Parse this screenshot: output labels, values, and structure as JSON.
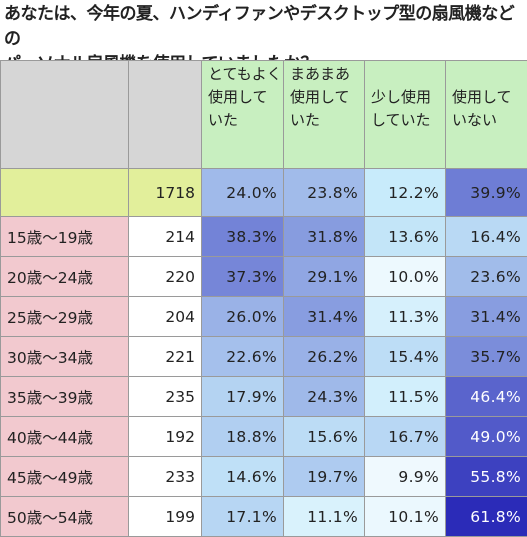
{
  "chart_data": {
    "type": "table",
    "title": "あなたは、今年の夏、ハンディファンやデスクトップ型の扇風機などのパーソナル扇風機を使用していましたか？",
    "title_lines": [
      "あなたは、今年の夏、ハンディファンやデスクトップ型の扇風機などの",
      "パーソナル扇風機を使用していましたか？"
    ],
    "columns": [
      {
        "label_lines": [
          "とてもよく",
          "使用して",
          "いた"
        ]
      },
      {
        "label_lines": [
          "まあまあ",
          "使用して",
          "いた"
        ]
      },
      {
        "label_lines": [
          "",
          "少し使用",
          "していた"
        ]
      },
      {
        "label_lines": [
          "",
          "使用して",
          "いない"
        ]
      }
    ],
    "total": {
      "label": "",
      "n": 1718,
      "values": [
        24.0,
        23.8,
        12.2,
        39.9
      ]
    },
    "rows": [
      {
        "label": "15歳～19歳",
        "n": 214,
        "values": [
          38.3,
          31.8,
          13.6,
          16.4
        ]
      },
      {
        "label": "20歳～24歳",
        "n": 220,
        "values": [
          37.3,
          29.1,
          10.0,
          23.6
        ]
      },
      {
        "label": "25歳～29歳",
        "n": 204,
        "values": [
          26.0,
          31.4,
          11.3,
          31.4
        ]
      },
      {
        "label": "30歳～34歳",
        "n": 221,
        "values": [
          22.6,
          26.2,
          15.4,
          35.7
        ]
      },
      {
        "label": "35歳～39歳",
        "n": 235,
        "values": [
          17.9,
          24.3,
          11.5,
          46.4
        ]
      },
      {
        "label": "40歳～44歳",
        "n": 192,
        "values": [
          18.8,
          15.6,
          16.7,
          49.0
        ]
      },
      {
        "label": "45歳～49歳",
        "n": 233,
        "values": [
          14.6,
          19.7,
          9.9,
          55.8
        ]
      },
      {
        "label": "50歳～54歳",
        "n": 199,
        "values": [
          17.1,
          11.1,
          10.1,
          61.8
        ]
      }
    ],
    "value_suffix": "%",
    "colors": {
      "header_bg": "#c8efc0",
      "header_blank_bg": "#d6d6d6",
      "row_label_bg": "#f2c9cf",
      "total_bg": "#e2ef9b",
      "heat_low": "#ffffff",
      "heat_mid": "#c9ecfb",
      "heat_high": "#2a2ab8"
    }
  }
}
